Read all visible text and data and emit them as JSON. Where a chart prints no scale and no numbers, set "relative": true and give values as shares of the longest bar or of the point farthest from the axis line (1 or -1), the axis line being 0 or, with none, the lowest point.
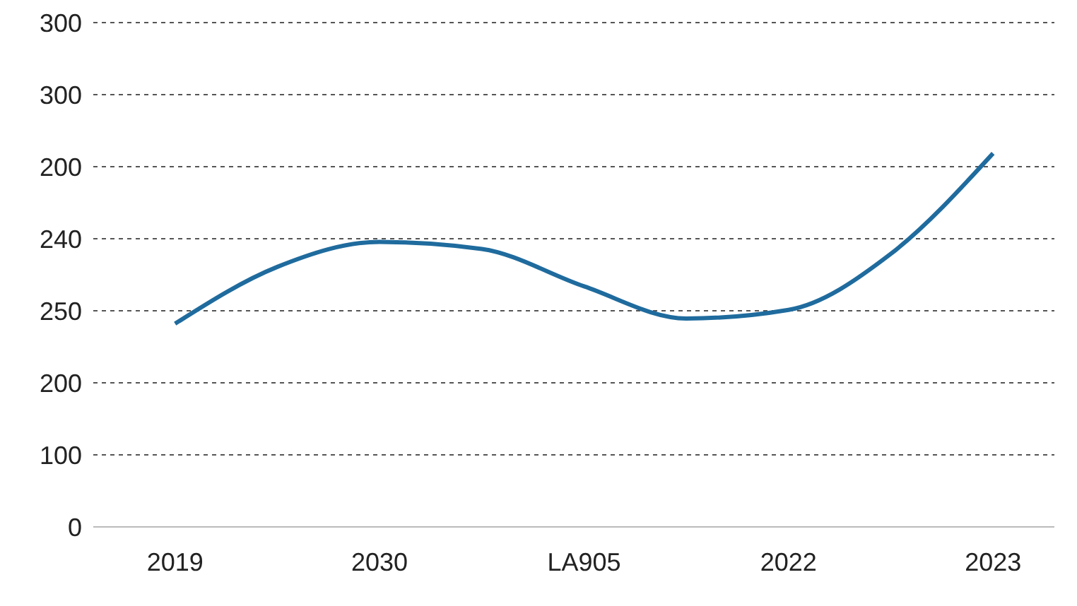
{
  "chart_data": {
    "type": "line",
    "color": "#1f6b9e",
    "relative": true,
    "categories": [
      "2019",
      null,
      "2030",
      null,
      "LA905",
      null,
      "2022",
      null,
      "2023"
    ],
    "values": [
      0.544,
      0.696,
      0.763,
      0.744,
      0.644,
      0.558,
      0.581,
      0.731,
      1
    ],
    "y_categories": [
      "300",
      "300",
      "200",
      "240",
      "250",
      "200",
      "100",
      "0"
    ],
    "grid": "y",
    "marker": "none",
    "line_style": "solid"
  }
}
